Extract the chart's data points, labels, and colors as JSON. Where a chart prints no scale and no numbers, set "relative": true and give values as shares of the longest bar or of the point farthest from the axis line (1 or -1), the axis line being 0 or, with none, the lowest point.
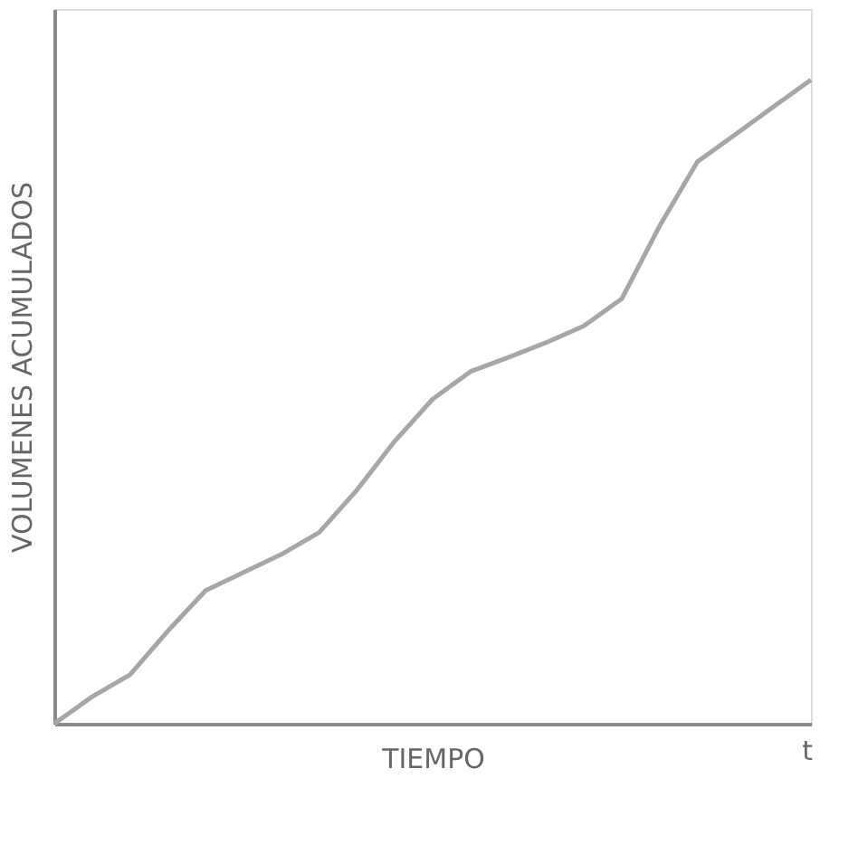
{
  "chart_data": {
    "type": "line",
    "relative": true,
    "xlabel": "TIEMPO",
    "ylabel": "VOLUMENES ACUMULADOS",
    "annotations": [
      "t"
    ],
    "categories": [
      null,
      null,
      null,
      null,
      null,
      null,
      null,
      null,
      null,
      null,
      null,
      null,
      null,
      null,
      null,
      null,
      null,
      null,
      null,
      null,
      null
    ],
    "series": [
      {
        "color": "#a6a6a6",
        "values": [
          0,
          0.042,
          0.076,
          0.144,
          0.207,
          0.235,
          0.263,
          0.297,
          0.363,
          0.439,
          0.504,
          0.547,
          0.569,
          0.592,
          0.618,
          0.66,
          0.773,
          0.873,
          0.915,
          0.958,
          1
        ]
      }
    ],
    "grid": false,
    "legend": false,
    "tick_labels": false,
    "marker": "none",
    "line_style": "solid"
  }
}
